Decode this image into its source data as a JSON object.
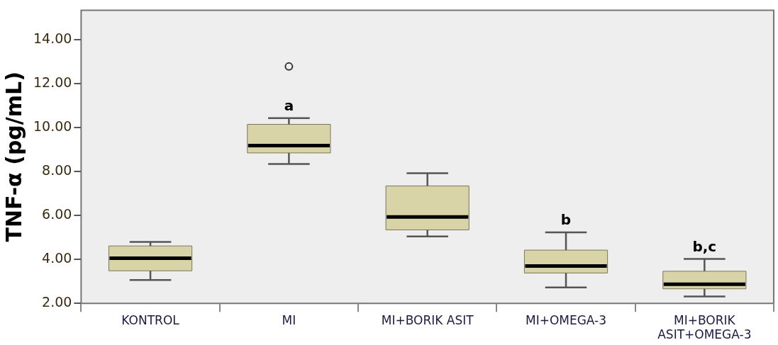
{
  "chart_data": {
    "type": "box",
    "ylabel": "TNF-α (pg/mL)",
    "categories": [
      "KONTROL",
      "MI",
      "MI+BORIK ASIT",
      "MI+OMEGA-3",
      "MI+BORIK ASIT+OMEGA-3"
    ],
    "boxes": [
      {
        "low": 3.06,
        "q1": 3.48,
        "median": 4.05,
        "q3": 4.61,
        "high": 4.79
      },
      {
        "low": 8.34,
        "q1": 8.84,
        "median": 9.17,
        "q3": 10.14,
        "high": 10.42,
        "outliers": [
          12.77
        ]
      },
      {
        "low": 5.04,
        "q1": 5.34,
        "median": 5.93,
        "q3": 7.34,
        "high": 7.92
      },
      {
        "low": 2.72,
        "q1": 3.38,
        "median": 3.7,
        "q3": 4.42,
        "high": 5.23
      },
      {
        "low": 2.31,
        "q1": 2.66,
        "median": 2.87,
        "q3": 3.46,
        "high": 4.02
      }
    ],
    "color": "#d9d3a8",
    "ylim": [
      2,
      15.33
    ],
    "yticks": [
      {
        "value": 2,
        "label": "2.00"
      },
      {
        "value": 4,
        "label": "4.00"
      },
      {
        "value": 6,
        "label": "6.00"
      },
      {
        "value": 8,
        "label": "8.00"
      },
      {
        "value": 10,
        "label": "10.00"
      },
      {
        "value": 12,
        "label": "12.00"
      },
      {
        "value": 14,
        "label": "14.00"
      }
    ],
    "grid": false,
    "annotations": [
      {
        "text": "a",
        "x": "MI",
        "y": 10.42
      },
      {
        "text": "b",
        "x": "MI+OMEGA-3",
        "y": 5.23
      },
      {
        "text": "b,c",
        "x": "MI+BORIK ASIT+OMEGA-3",
        "y": 4.02
      }
    ]
  }
}
